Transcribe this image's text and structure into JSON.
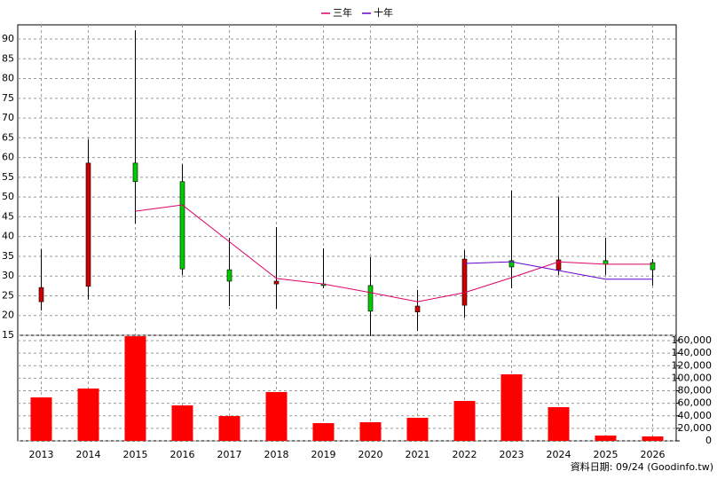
{
  "chart_data": {
    "type": "candlestick",
    "categories": [
      "2013",
      "2014",
      "2015",
      "2016",
      "2017",
      "2018",
      "2019",
      "2020",
      "2021",
      "2022",
      "2023",
      "2024",
      "2025",
      "2026"
    ],
    "open": [
      23.5,
      27.4,
      58.6,
      53.9,
      31.6,
      28.0,
      28.0,
      27.6,
      20.9,
      22.6,
      33.9,
      31.6,
      33.9,
      33.4
    ],
    "high": [
      36.8,
      64.6,
      92.2,
      58.3,
      39.7,
      42.4,
      37.0,
      34.8,
      26.5,
      36.6,
      51.6,
      50.0,
      39.7,
      34.3
    ],
    "low": [
      21.3,
      24.0,
      43.3,
      30.3,
      22.4,
      21.7,
      26.9,
      14.8,
      16.1,
      19.5,
      26.9,
      30.3,
      30.3,
      27.6
    ],
    "close": [
      27.1,
      58.6,
      53.9,
      31.8,
      28.7,
      28.7,
      27.6,
      21.1,
      22.4,
      34.3,
      32.3,
      34.1,
      33.0,
      31.6
    ],
    "up_color": "#cc0000",
    "down_color": "#00cc00",
    "series": [
      {
        "name": "三年",
        "color": "#dd0066",
        "values": [
          null,
          null,
          46.4,
          48.0,
          38.7,
          29.4,
          28.0,
          25.8,
          23.5,
          25.8,
          29.6,
          33.6,
          33.0,
          33.0
        ]
      },
      {
        "name": "十年",
        "color": "#6600cc",
        "values": [
          null,
          null,
          null,
          null,
          null,
          null,
          null,
          null,
          null,
          33.2,
          33.6,
          31.4,
          29.2,
          29.2
        ]
      }
    ],
    "volume": {
      "color": "#ff0000",
      "values": [
        69400,
        83500,
        167000,
        56600,
        39600,
        77900,
        28300,
        29700,
        36800,
        63700,
        106200,
        53800,
        8500,
        7100
      ]
    },
    "ylim": [
      15,
      93.6
    ],
    "yticks": [
      15,
      20,
      25,
      30,
      35,
      40,
      45,
      50,
      55,
      60,
      65,
      70,
      75,
      80,
      85,
      90
    ],
    "y2lim": [
      0,
      168500
    ],
    "y2ticks": [
      0,
      {
        "value": 20000,
        "label": "20,000"
      },
      {
        "value": 40000,
        "label": "40,000"
      },
      {
        "value": 60000,
        "label": "60,000"
      },
      {
        "value": 80000,
        "label": "80,000"
      },
      {
        "value": 100000,
        "label": "100,000"
      },
      {
        "value": 120000,
        "label": "120,000"
      },
      {
        "value": 140000,
        "label": "140,000"
      },
      {
        "value": 160000,
        "label": "160,000"
      }
    ],
    "grid": true,
    "legend": "top",
    "footnote": "資料日期: 09/24  (Goodinfo.tw)"
  }
}
